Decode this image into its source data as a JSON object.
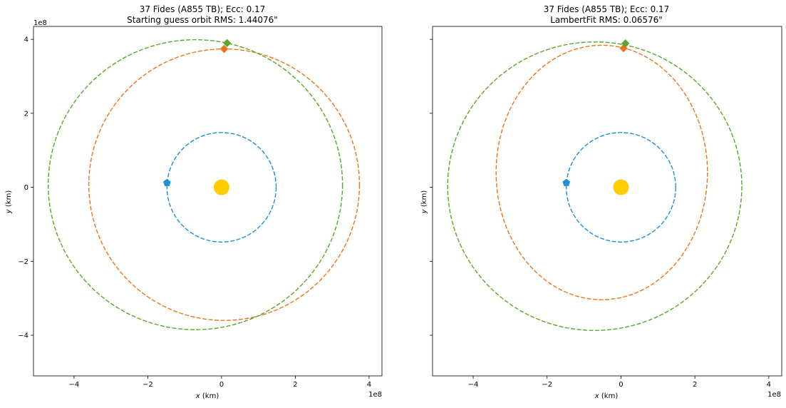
{
  "chart_data": [
    {
      "type": "line",
      "title_line1": "37 Fides (A855 TB); Ecc: 0.17",
      "title_line2": "Starting guess orbit RMS: 1.44076\"",
      "xlabel_var": "x",
      "xlabel_unit": " (km)",
      "ylabel_var": "y",
      "ylabel_unit": " (km)",
      "offset_label": "1e8",
      "xlim": [
        -5.1,
        4.35
      ],
      "ylim": [
        -5.1,
        4.35
      ],
      "xticks": [
        -4,
        -2,
        0,
        2,
        4
      ],
      "yticks": [
        -4,
        -2,
        0,
        2,
        4
      ],
      "xtick_labels": [
        "−4",
        "−2",
        "0",
        "2",
        "4"
      ],
      "ytick_labels": [
        "−4",
        "−2",
        "0",
        "2",
        "4"
      ],
      "ytick_labels_visible": true,
      "sun": {
        "x": 0,
        "y": 0,
        "color": "#ffcc00"
      },
      "series": [
        {
          "color": "#1f8fd6",
          "center": [
            0,
            0
          ],
          "a": 1.48,
          "b": 1.48,
          "marker": {
            "x": -1.48,
            "y": 0.12,
            "shape": "pentagon"
          }
        },
        {
          "color": "#f07318",
          "center": [
            0.07,
            0.07
          ],
          "a": 3.67,
          "b": 3.67,
          "marker": {
            "x": 0.07,
            "y": 3.74,
            "shape": "diamond"
          }
        },
        {
          "color": "#57a828",
          "center": [
            -0.71,
            0.07
          ],
          "a": 3.99,
          "b": 3.92,
          "marker": {
            "x": 0.15,
            "y": 3.9,
            "shape": "diamond"
          }
        }
      ]
    },
    {
      "type": "line",
      "title_line1": "37 Fides (A855 TB); Ecc: 0.17",
      "title_line2": "LambertFit RMS: 0.06576\"",
      "xlabel_var": "x",
      "xlabel_unit": " (km)",
      "ylabel_var": "y",
      "ylabel_unit": " (km)",
      "offset_label": "1e8",
      "xlim": [
        -5.1,
        4.35
      ],
      "ylim": [
        -5.1,
        4.35
      ],
      "xticks": [
        -4,
        -2,
        0,
        2,
        4
      ],
      "yticks": [
        -4,
        -2,
        0,
        2,
        4
      ],
      "xtick_labels": [
        "−4",
        "−2",
        "0",
        "2",
        "4"
      ],
      "ytick_labels": [
        "",
        "",
        "",
        "",
        ""
      ],
      "ytick_labels_visible": false,
      "sun": {
        "x": 0,
        "y": 0,
        "color": "#ffcc00"
      },
      "series": [
        {
          "color": "#1f8fd6",
          "center": [
            0,
            0
          ],
          "a": 1.48,
          "b": 1.48,
          "marker": {
            "x": -1.48,
            "y": 0.12,
            "shape": "pentagon"
          }
        },
        {
          "color": "#f07318",
          "center": [
            -0.52,
            0.4
          ],
          "a": 2.86,
          "b": 3.44,
          "marker": {
            "x": 0.07,
            "y": 3.76,
            "shape": "diamond"
          }
        },
        {
          "color": "#57a828",
          "center": [
            -0.71,
            0.03
          ],
          "a": 3.98,
          "b": 3.9,
          "marker": {
            "x": 0.12,
            "y": 3.89,
            "shape": "diamond"
          }
        }
      ]
    }
  ]
}
